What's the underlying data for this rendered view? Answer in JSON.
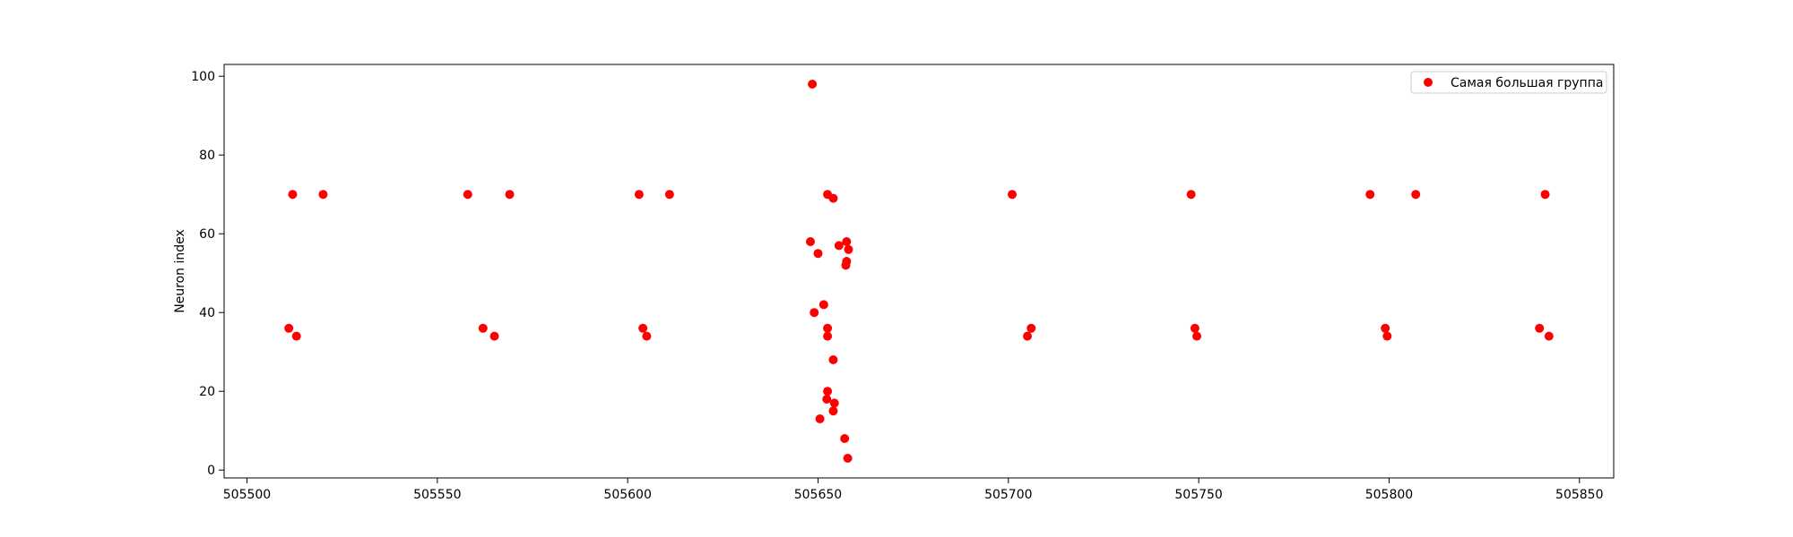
{
  "chart_data": {
    "type": "scatter",
    "title": "",
    "xlabel": "",
    "ylabel": "Neuron index",
    "xlim": [
      505494,
      505859
    ],
    "ylim": [
      -2,
      103
    ],
    "xticks": [
      505500,
      505550,
      505600,
      505650,
      505700,
      505750,
      505800,
      505850
    ],
    "yticks": [
      0,
      20,
      40,
      60,
      80,
      100
    ],
    "grid": false,
    "legend_position": "top-right",
    "series": [
      {
        "name": "Самая большая группа",
        "color": "#ff0000",
        "points": [
          {
            "x": 505511,
            "y": 36
          },
          {
            "x": 505512,
            "y": 70
          },
          {
            "x": 505513,
            "y": 34
          },
          {
            "x": 505520,
            "y": 70
          },
          {
            "x": 505558,
            "y": 70
          },
          {
            "x": 505562,
            "y": 36
          },
          {
            "x": 505565,
            "y": 34
          },
          {
            "x": 505569,
            "y": 70
          },
          {
            "x": 505603,
            "y": 70
          },
          {
            "x": 505604,
            "y": 36
          },
          {
            "x": 505605,
            "y": 34
          },
          {
            "x": 505611,
            "y": 70
          },
          {
            "x": 505648.5,
            "y": 98
          },
          {
            "x": 505648,
            "y": 58
          },
          {
            "x": 505649,
            "y": 40
          },
          {
            "x": 505650,
            "y": 55
          },
          {
            "x": 505650.5,
            "y": 13
          },
          {
            "x": 505651.5,
            "y": 42
          },
          {
            "x": 505652.5,
            "y": 70
          },
          {
            "x": 505652.5,
            "y": 36
          },
          {
            "x": 505652.5,
            "y": 34
          },
          {
            "x": 505652.5,
            "y": 20
          },
          {
            "x": 505652.3,
            "y": 18
          },
          {
            "x": 505654,
            "y": 69
          },
          {
            "x": 505654,
            "y": 28
          },
          {
            "x": 505654.3,
            "y": 17
          },
          {
            "x": 505654,
            "y": 15
          },
          {
            "x": 505655.5,
            "y": 57
          },
          {
            "x": 505657,
            "y": 8
          },
          {
            "x": 505657.5,
            "y": 58
          },
          {
            "x": 505658,
            "y": 56
          },
          {
            "x": 505657.5,
            "y": 53
          },
          {
            "x": 505657.3,
            "y": 52
          },
          {
            "x": 505657.8,
            "y": 3
          },
          {
            "x": 505701,
            "y": 70
          },
          {
            "x": 505705,
            "y": 34
          },
          {
            "x": 505706,
            "y": 36
          },
          {
            "x": 505748,
            "y": 70
          },
          {
            "x": 505749,
            "y": 36
          },
          {
            "x": 505749.5,
            "y": 34
          },
          {
            "x": 505795,
            "y": 70
          },
          {
            "x": 505799,
            "y": 36
          },
          {
            "x": 505799.5,
            "y": 34
          },
          {
            "x": 505807,
            "y": 70
          },
          {
            "x": 505839.5,
            "y": 36
          },
          {
            "x": 505841,
            "y": 70
          },
          {
            "x": 505842,
            "y": 34
          }
        ]
      }
    ]
  }
}
